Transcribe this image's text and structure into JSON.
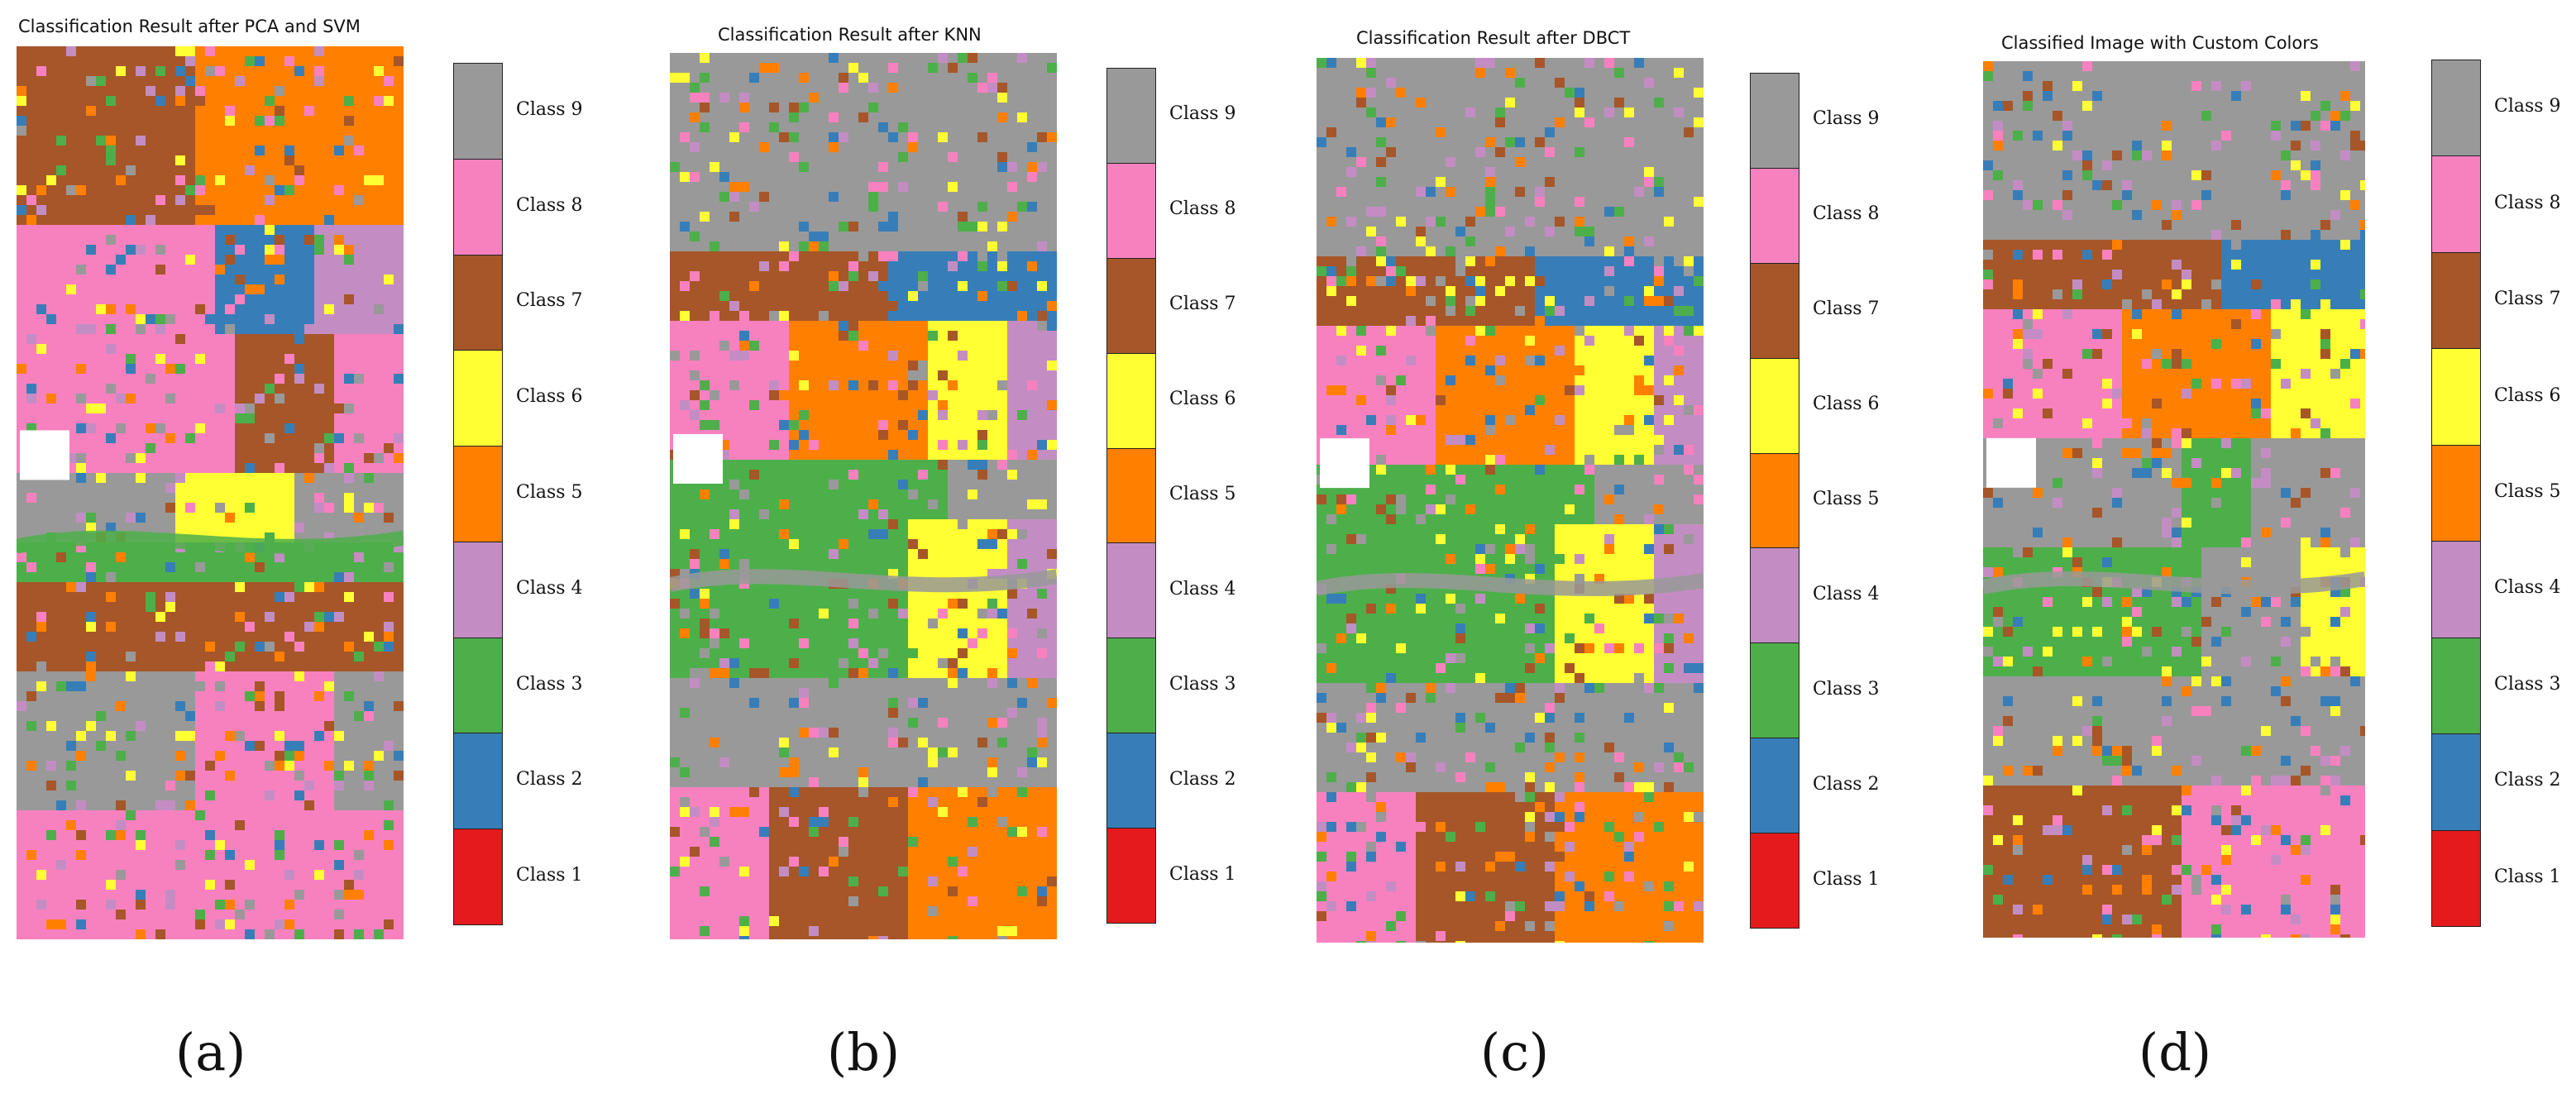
{
  "classes": [
    {
      "label": "Class 9",
      "color": "#999999"
    },
    {
      "label": "Class 8",
      "color": "#f781bf"
    },
    {
      "label": "Class 7",
      "color": "#a65628"
    },
    {
      "label": "Class 6",
      "color": "#ffff33"
    },
    {
      "label": "Class 5",
      "color": "#ff7f00"
    },
    {
      "label": "Class 4",
      "color": "#c38dc3"
    },
    {
      "label": "Class 3",
      "color": "#4daf4a"
    },
    {
      "label": "Class 2",
      "color": "#377eb8"
    },
    {
      "label": "Class 1",
      "color": "#e41a1c"
    }
  ],
  "panels": [
    {
      "title": "Classification Result after PCA and SVM",
      "caption": "(a)"
    },
    {
      "title": "Classification Result after KNN",
      "caption": "(b)"
    },
    {
      "title": "Classification Result after DBCT",
      "caption": "(c)"
    },
    {
      "title": "Classified Image with Custom Colors",
      "caption": "(d)"
    }
  ]
}
